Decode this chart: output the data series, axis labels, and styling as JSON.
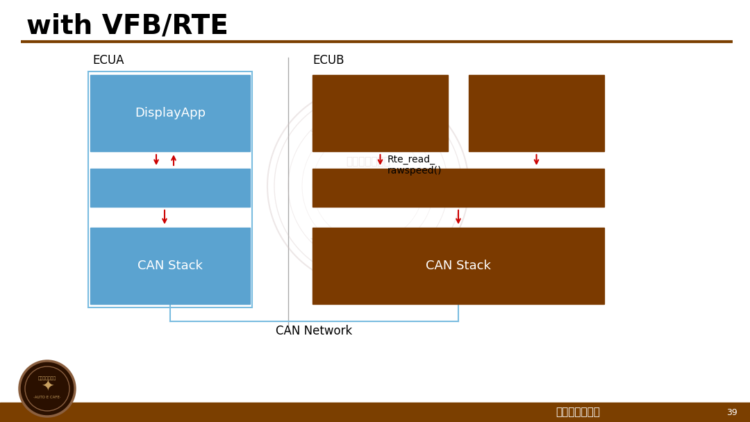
{
  "title": "with VFB/RTE",
  "bg_color": "#ffffff",
  "title_color": "#000000",
  "title_fontsize": 28,
  "divider_color": "#7B3F00",
  "bottom_bar_color": "#7B3F00",
  "ecua_label": "ECUA",
  "ecub_label": "ECUB",
  "can_network_label": "CAN Network",
  "blue_color": "#5BA3D0",
  "brown_color": "#7B3A00",
  "arrow_color": "#CC0000",
  "annotation_text": "Rte_read_\nrawspeed()",
  "page_num": "39",
  "watermark_color": "#CCBBBB",
  "bottom_right_text": "汽车电子咖啡厅"
}
